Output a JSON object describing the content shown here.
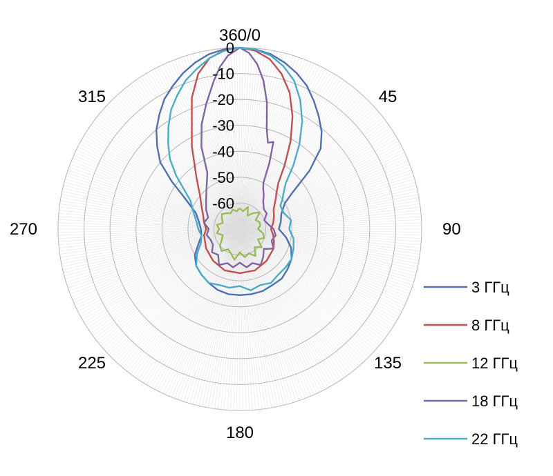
{
  "chart_data": {
    "type": "line",
    "subtype": "polar",
    "angle_labels": [
      "360/0",
      "45",
      "90",
      "135",
      "180",
      "225",
      "270",
      "315"
    ],
    "radial_tick_labels": [
      "0",
      "-10",
      "-20",
      "-30",
      "-40",
      "-50",
      "-60"
    ],
    "r_range": [
      -70,
      0
    ],
    "grid": true,
    "legend_position": "right-bottom",
    "series": [
      {
        "name": "3 ГГц",
        "color": "#4f6fb0",
        "angles": [
          0,
          5,
          10,
          15,
          20,
          25,
          30,
          35,
          40,
          45,
          50,
          55,
          60,
          70,
          80,
          90,
          100,
          110,
          120,
          130,
          140,
          150,
          160,
          170,
          180,
          190,
          200,
          210,
          220,
          230,
          240,
          250,
          260,
          270,
          280,
          290,
          300,
          305,
          310,
          315,
          320,
          325,
          330,
          335,
          340,
          345,
          350,
          355,
          360
        ],
        "values": [
          0,
          -0.4,
          -1.5,
          -3.5,
          -6,
          -9,
          -13,
          -17,
          -21,
          -26,
          -35,
          -45,
          -50,
          -53,
          -54,
          -55,
          -52,
          -49,
          -47,
          -46,
          -45,
          -45,
          -44.5,
          -44.5,
          -44.5,
          -44.5,
          -45,
          -46,
          -47,
          -48,
          -50,
          -53,
          -55,
          -55,
          -54,
          -52,
          -45,
          -38,
          -30,
          -25,
          -20,
          -16,
          -12,
          -9,
          -6,
          -3.5,
          -1.5,
          -0.4,
          0
        ]
      },
      {
        "name": "8 ГГц",
        "color": "#c0504d",
        "angles": [
          0,
          5,
          10,
          15,
          20,
          25,
          30,
          35,
          40,
          45,
          50,
          60,
          70,
          80,
          90,
          100,
          110,
          120,
          140,
          160,
          180,
          200,
          220,
          240,
          260,
          270,
          280,
          290,
          300,
          310,
          320,
          330,
          340,
          345,
          350,
          355,
          360
        ],
        "values": [
          0,
          -1,
          -3.5,
          -8,
          -14,
          -22,
          -31,
          -40,
          -47,
          -50,
          -52,
          -55,
          -56,
          -57,
          -58,
          -57,
          -56,
          -55,
          -54,
          -53,
          -53,
          -53,
          -54,
          -55,
          -56,
          -57,
          -56,
          -55,
          -53,
          -50,
          -44,
          -33,
          -16,
          -8,
          -3,
          -0.8,
          0
        ]
      },
      {
        "name": "12 ГГц",
        "color": "#9bbb59",
        "angles": [
          0,
          10,
          20,
          30,
          40,
          50,
          60,
          70,
          80,
          90,
          100,
          110,
          120,
          130,
          140,
          150,
          160,
          170,
          180,
          190,
          200,
          210,
          220,
          230,
          240,
          250,
          260,
          270,
          280,
          290,
          300,
          310,
          320,
          330,
          340,
          350,
          360
        ],
        "values": [
          -62,
          -63,
          -61,
          -64,
          -62,
          -60,
          -63,
          -62,
          -62,
          -63,
          -61,
          -60,
          -62,
          -59,
          -61,
          -58,
          -60,
          -59,
          -61,
          -58,
          -60,
          -61,
          -59,
          -60,
          -62,
          -63,
          -61,
          -62,
          -61,
          -63,
          -62,
          -61,
          -62,
          -63,
          -62,
          -63,
          -62
        ]
      },
      {
        "name": "18 ГГц",
        "color": "#8064a2",
        "angles": [
          0,
          3,
          6,
          9,
          12,
          15,
          18,
          21,
          24,
          27,
          30,
          35,
          40,
          50,
          60,
          70,
          80,
          90,
          100,
          110,
          120,
          130,
          140,
          150,
          160,
          170,
          180,
          190,
          200,
          210,
          220,
          230,
          240,
          250,
          260,
          270,
          280,
          290,
          300,
          310,
          320,
          330,
          335,
          340,
          345,
          350,
          353,
          356,
          360
        ],
        "values": [
          0,
          -2,
          -6,
          -12,
          -20,
          -30,
          -35,
          -34,
          -42,
          -50,
          -52,
          -54,
          -56,
          -58,
          -58,
          -60,
          -59,
          -57,
          -56,
          -57,
          -55,
          -58,
          -56,
          -54,
          -56,
          -55,
          -57,
          -55,
          -56,
          -54,
          -57,
          -56,
          -58,
          -58,
          -57,
          -58,
          -56,
          -57,
          -55,
          -53,
          -50,
          -45,
          -35,
          -27,
          -20,
          -12,
          -7,
          -3,
          0
        ]
      },
      {
        "name": "22 ГГц",
        "color": "#4bacc6",
        "angles": [
          0,
          5,
          10,
          15,
          20,
          25,
          30,
          35,
          40,
          45,
          50,
          55,
          60,
          70,
          80,
          90,
          100,
          110,
          120,
          130,
          140,
          150,
          160,
          170,
          180,
          190,
          200,
          210,
          220,
          230,
          240,
          250,
          260,
          270,
          280,
          290,
          300,
          305,
          310,
          315,
          320,
          325,
          330,
          335,
          340,
          345,
          350,
          355,
          360
        ],
        "values": [
          0,
          -0.5,
          -2,
          -5,
          -9,
          -15,
          -22,
          -30,
          -38,
          -45,
          -48,
          -50,
          -52,
          -52,
          -50,
          -51,
          -49,
          -48,
          -47,
          -47,
          -47,
          -46,
          -47,
          -46,
          -48,
          -47,
          -47,
          -46,
          -47,
          -48,
          -51,
          -54,
          -55,
          -54,
          -53,
          -51,
          -48,
          -44,
          -38,
          -32,
          -27,
          -22,
          -17,
          -13,
          -9,
          -6,
          -3,
          -1,
          0
        ]
      }
    ]
  }
}
